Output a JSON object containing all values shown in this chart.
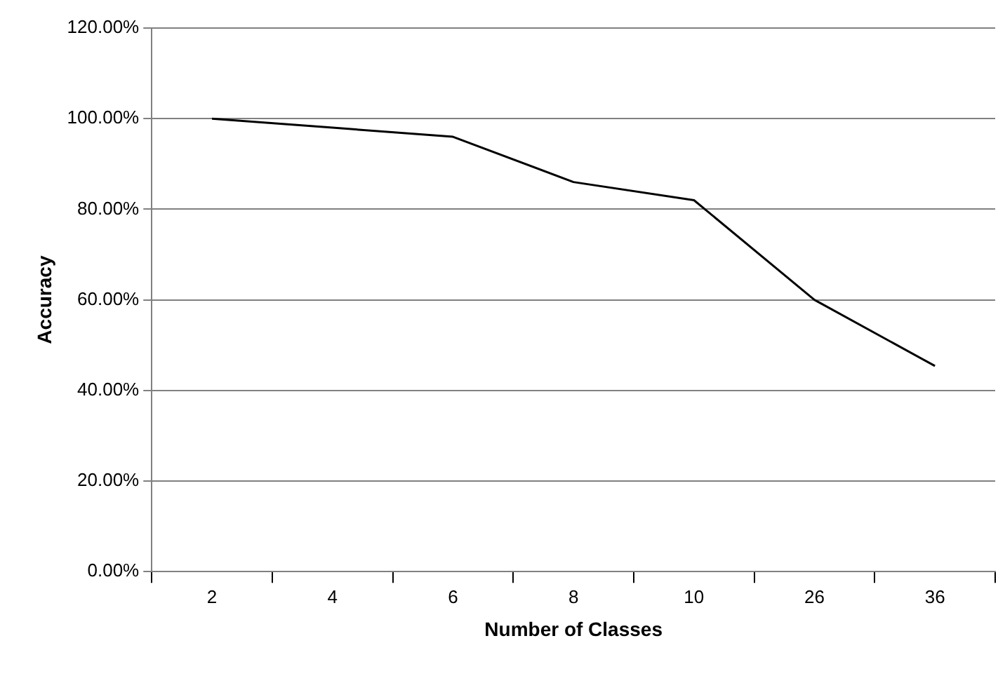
{
  "chart_data": {
    "type": "line",
    "xlabel": "Number of Classes",
    "ylabel": "Accuracy",
    "categories": [
      "2",
      "4",
      "6",
      "8",
      "10",
      "26",
      "36"
    ],
    "series": [
      {
        "color": "#000000",
        "values": [
          100,
          98,
          96,
          86,
          82,
          60,
          45.4
        ]
      }
    ],
    "ylim": [
      0,
      120
    ],
    "yticks": [
      {
        "value": 0,
        "label": "0.00%"
      },
      {
        "value": 20,
        "label": "20.00%"
      },
      {
        "value": 40,
        "label": "40.00%"
      },
      {
        "value": 60,
        "label": "60.00%"
      },
      {
        "value": 80,
        "label": "80.00%"
      },
      {
        "value": 100,
        "label": "100.00%"
      },
      {
        "value": 120,
        "label": "120.00%"
      }
    ],
    "grid": "y",
    "legend": false,
    "marker": "none",
    "line_style": "solid"
  }
}
